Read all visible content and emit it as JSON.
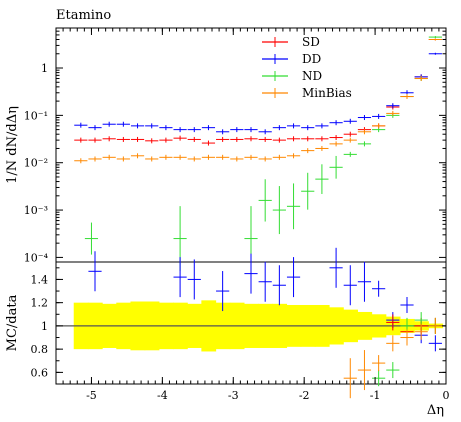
{
  "chart_data": [
    {
      "type": "scatter",
      "title": "Etamino",
      "ylabel": "1/N dN/dΔη",
      "xlabel": "",
      "yscale": "log",
      "ylim": [
        8e-05,
        7
      ],
      "xlim": [
        -5.5,
        0
      ],
      "grid": false,
      "legend_position": "top-right",
      "ytick_labels": [
        "1",
        "10⁻¹",
        "10⁻²",
        "10⁻³",
        "10⁻⁴"
      ],
      "ytick_values": [
        1,
        0.1,
        0.01,
        0.001,
        0.0001
      ],
      "x_centers": [
        -5.15,
        -4.95,
        -4.75,
        -4.55,
        -4.35,
        -4.15,
        -3.95,
        -3.75,
        -3.55,
        -3.35,
        -3.15,
        -2.95,
        -2.75,
        -2.55,
        -2.35,
        -2.15,
        -1.95,
        -1.75,
        -1.55,
        -1.35,
        -1.15,
        -0.95,
        -0.75,
        -0.55,
        -0.35,
        -0.15
      ],
      "series": [
        {
          "name": "SD",
          "color": "#ff0000",
          "values": [
            0.03,
            0.03,
            0.032,
            0.031,
            0.031,
            0.029,
            0.03,
            0.033,
            0.031,
            0.026,
            0.031,
            0.031,
            0.032,
            0.031,
            0.03,
            0.032,
            0.032,
            0.032,
            0.034,
            0.04,
            0.05,
            0.06,
            0.15,
            0.25,
            0.65,
            4.0
          ]
        },
        {
          "name": "DD",
          "color": "#0000ff",
          "values": [
            0.062,
            0.055,
            0.065,
            0.065,
            0.06,
            0.06,
            0.055,
            0.05,
            0.05,
            0.055,
            0.045,
            0.05,
            0.05,
            0.045,
            0.055,
            0.06,
            0.055,
            0.06,
            0.07,
            0.075,
            0.09,
            0.095,
            0.16,
            0.3,
            0.65,
            2.0
          ]
        },
        {
          "name": "ND",
          "color": "#33dd33",
          "values": [
            null,
            null,
            null,
            null,
            null,
            null,
            null,
            0.00025,
            null,
            null,
            null,
            null,
            0.00025,
            0.0016,
            0.001,
            0.0012,
            0.0025,
            0.0045,
            0.008,
            0.015,
            0.025,
            0.05,
            0.1,
            0.25,
            0.6,
            4.5
          ],
          "extra_points": [
            {
              "x": -5.0,
              "y": 0.00025
            }
          ]
        },
        {
          "name": "MinBias",
          "color": "#ff8800",
          "values": [
            0.011,
            0.012,
            0.013,
            0.012,
            0.014,
            0.012,
            0.013,
            0.013,
            0.012,
            0.013,
            0.013,
            0.012,
            0.013,
            0.012,
            0.013,
            0.014,
            0.018,
            0.02,
            0.025,
            0.03,
            0.045,
            0.06,
            0.11,
            0.25,
            0.6,
            4.0
          ]
        }
      ]
    },
    {
      "type": "scatter",
      "title": "",
      "ylabel": "MC/data",
      "xlabel": "Δη",
      "ylim": [
        0.5,
        1.55
      ],
      "xlim": [
        -5.5,
        0
      ],
      "grid": false,
      "reference_line": 1,
      "ytick_labels": [
        "1.4",
        "1.2",
        "1",
        "0.8",
        "0.6"
      ],
      "ytick_values": [
        1.4,
        1.2,
        1.0,
        0.8,
        0.6
      ],
      "xtick_labels": [
        "-5",
        "-4",
        "-3",
        "-2",
        "-1",
        "0"
      ],
      "xtick_values": [
        -5,
        -4,
        -3,
        -2,
        -1,
        0
      ],
      "band": {
        "color": "#ffff00",
        "x_centers": [
          -5.15,
          -4.95,
          -4.75,
          -4.55,
          -4.35,
          -4.15,
          -3.95,
          -3.75,
          -3.55,
          -3.35,
          -3.15,
          -2.95,
          -2.75,
          -2.55,
          -2.35,
          -2.15,
          -1.95,
          -1.75,
          -1.55,
          -1.35,
          -1.15,
          -0.95,
          -0.75,
          -0.55,
          -0.35,
          -0.15
        ],
        "half_width": [
          0.2,
          0.2,
          0.19,
          0.2,
          0.21,
          0.21,
          0.2,
          0.2,
          0.19,
          0.22,
          0.2,
          0.2,
          0.19,
          0.19,
          0.19,
          0.18,
          0.18,
          0.18,
          0.16,
          0.14,
          0.12,
          0.1,
          0.08,
          0.06,
          0.04,
          0.02
        ]
      },
      "series": [
        {
          "name": "DD",
          "color": "#0000ff",
          "points": [
            {
              "x": -4.95,
              "y": 1.47
            },
            {
              "x": -3.75,
              "y": 1.42
            },
            {
              "x": -3.55,
              "y": 1.4
            },
            {
              "x": -3.15,
              "y": 1.3
            },
            {
              "x": -2.75,
              "y": 1.45
            },
            {
              "x": -2.55,
              "y": 1.38
            },
            {
              "x": -2.35,
              "y": 1.35
            },
            {
              "x": -2.15,
              "y": 1.42
            },
            {
              "x": -1.55,
              "y": 1.5
            },
            {
              "x": -1.35,
              "y": 1.35
            },
            {
              "x": -1.15,
              "y": 1.38
            },
            {
              "x": -0.95,
              "y": 1.32
            },
            {
              "x": -0.75,
              "y": 1.05
            },
            {
              "x": -0.55,
              "y": 1.18
            },
            {
              "x": -0.35,
              "y": 0.92
            },
            {
              "x": -0.15,
              "y": 0.85
            }
          ]
        },
        {
          "name": "SD",
          "color": "#ff0000",
          "points": [
            {
              "x": -0.75,
              "y": 1.03
            },
            {
              "x": -0.55,
              "y": 0.95
            },
            {
              "x": -0.35,
              "y": 1.0
            },
            {
              "x": -0.15,
              "y": 1.0
            }
          ]
        },
        {
          "name": "ND",
          "color": "#33dd33",
          "points": [
            {
              "x": -0.95,
              "y": 0.55
            },
            {
              "x": -0.75,
              "y": 0.62
            },
            {
              "x": -0.55,
              "y": 1.0
            },
            {
              "x": -0.35,
              "y": 1.05
            },
            {
              "x": -0.15,
              "y": 1.0
            }
          ]
        },
        {
          "name": "MinBias",
          "color": "#ff8800",
          "points": [
            {
              "x": -1.35,
              "y": 0.55
            },
            {
              "x": -1.15,
              "y": 0.62
            },
            {
              "x": -0.95,
              "y": 0.68
            },
            {
              "x": -0.75,
              "y": 0.85
            },
            {
              "x": -0.55,
              "y": 0.9
            },
            {
              "x": -0.35,
              "y": 0.95
            },
            {
              "x": -0.15,
              "y": 1.0
            }
          ]
        }
      ]
    }
  ]
}
